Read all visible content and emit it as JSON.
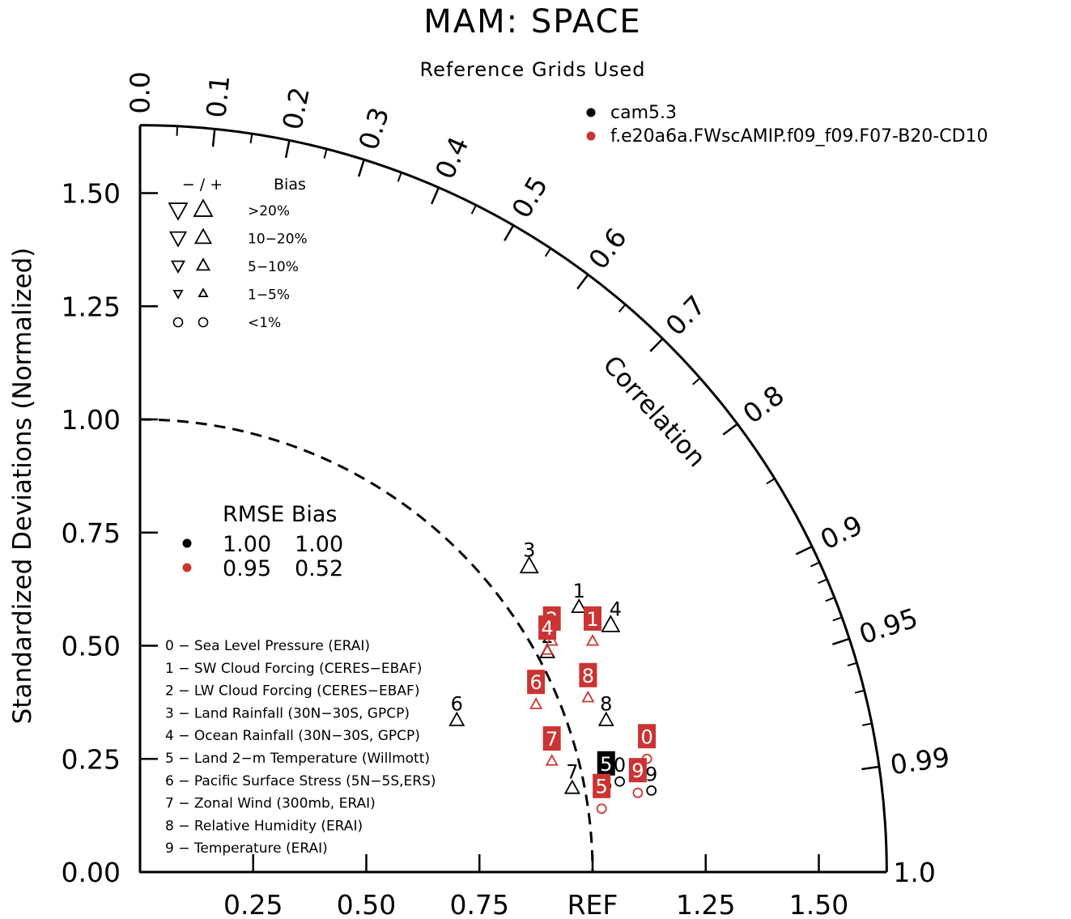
{
  "title": "MAM: SPACE",
  "subtitle": "Reference Grids Used",
  "colors": {
    "black": "#000000",
    "red": "#cc3333"
  },
  "chart_data": {
    "type": "scatter",
    "diagram": "taylor",
    "ylabel": "Standardized Deviations (Normalized)",
    "angular_label": "Correlation",
    "ref_label": "REF",
    "sd_max": 1.65,
    "ref_circle_sd": 1.0,
    "y_ticks": [
      0.0,
      0.25,
      0.5,
      0.75,
      1.0,
      1.25,
      1.5
    ],
    "y_tick_labels": [
      "0.00",
      "0.25",
      "0.50",
      "0.75",
      "1.00",
      "1.25",
      "1.50"
    ],
    "x_ticks": [
      0.25,
      0.5,
      0.75,
      1.0,
      1.25,
      1.5
    ],
    "x_tick_labels": [
      "0.25",
      "0.50",
      "0.75",
      "REF",
      "1.25",
      "1.50"
    ],
    "corr_major": [
      0.0,
      0.1,
      0.2,
      0.3,
      0.4,
      0.5,
      0.6,
      0.7,
      0.8,
      0.9,
      0.95,
      0.99,
      1.0
    ],
    "corr_major_labels": [
      "0.0",
      "0.1",
      "0.2",
      "0.3",
      "0.4",
      "0.5",
      "0.6",
      "0.7",
      "0.8",
      "0.9",
      "0.95",
      "0.99",
      "1.0"
    ],
    "corr_minor": [
      0.05,
      0.15,
      0.25,
      0.35,
      0.45,
      0.55,
      0.65,
      0.75,
      0.85,
      0.91,
      0.92,
      0.93,
      0.94,
      0.96,
      0.97,
      0.98
    ],
    "series": [
      {
        "name": "cam5.3",
        "color": "#000000",
        "rmse": "1.00",
        "bias": "1.00",
        "points": [
          {
            "id": "0",
            "x": 1.06,
            "y": 0.2,
            "marker": "circle",
            "size": "sm",
            "lpos": "above"
          },
          {
            "id": "1",
            "x": 0.97,
            "y": 0.585,
            "marker": "tri-up",
            "size": "md",
            "lpos": "above"
          },
          {
            "id": "2",
            "x": 0.9,
            "y": 0.485,
            "marker": "tri-up",
            "size": "md",
            "lpos": "above"
          },
          {
            "id": "3",
            "x": 0.86,
            "y": 0.675,
            "marker": "tri-up",
            "size": "lg",
            "lpos": "above"
          },
          {
            "id": "4",
            "x": 1.04,
            "y": 0.545,
            "marker": "tri-up",
            "size": "lg",
            "lpos": "aboveright"
          },
          {
            "id": "5",
            "x": 1.03,
            "y": 0.19,
            "marker": "circle",
            "size": "sm",
            "lpos": "box"
          },
          {
            "id": "6",
            "x": 0.7,
            "y": 0.335,
            "marker": "tri-up",
            "size": "md",
            "lpos": "above"
          },
          {
            "id": "7",
            "x": 0.955,
            "y": 0.185,
            "marker": "tri-up",
            "size": "md",
            "lpos": "above"
          },
          {
            "id": "8",
            "x": 1.03,
            "y": 0.335,
            "marker": "tri-up",
            "size": "md",
            "lpos": "above"
          },
          {
            "id": "9",
            "x": 1.13,
            "y": 0.18,
            "marker": "circle",
            "size": "sm",
            "lpos": "above"
          }
        ]
      },
      {
        "name": "f.e20a6a.FWscAMIP.f09_f09.F07-B20-CD10",
        "color": "#cc3333",
        "rmse": "0.95",
        "bias": "0.52",
        "points": [
          {
            "id": "0",
            "x": 1.12,
            "y": 0.25,
            "marker": "circle",
            "size": "sm",
            "lpos": "box"
          },
          {
            "id": "1",
            "x": 1.0,
            "y": 0.51,
            "marker": "tri-up",
            "size": "sm",
            "lpos": "box"
          },
          {
            "id": "2",
            "x": 0.91,
            "y": 0.51,
            "marker": "tri-up",
            "size": "sm",
            "lpos": "box"
          },
          {
            "id": "4",
            "x": 0.9,
            "y": 0.49,
            "marker": "tri-up",
            "size": "sm",
            "lpos": "box"
          },
          {
            "id": "5",
            "x": 1.02,
            "y": 0.14,
            "marker": "circle",
            "size": "sm",
            "lpos": "box"
          },
          {
            "id": "6",
            "x": 0.875,
            "y": 0.37,
            "marker": "tri-up",
            "size": "sm",
            "lpos": "box"
          },
          {
            "id": "7",
            "x": 0.91,
            "y": 0.245,
            "marker": "tri-up",
            "size": "sm",
            "lpos": "box"
          },
          {
            "id": "8",
            "x": 0.99,
            "y": 0.385,
            "marker": "tri-up",
            "size": "sm",
            "lpos": "box"
          },
          {
            "id": "9",
            "x": 1.1,
            "y": 0.175,
            "marker": "circle",
            "size": "sm",
            "lpos": "box"
          }
        ]
      }
    ]
  },
  "bias_legend": {
    "header_sign": "− / +",
    "header_bias": "Bias",
    "rows": [
      ">20%",
      "10−20%",
      "5−10%",
      "1−5%",
      "<1%"
    ]
  },
  "rmse_legend": {
    "header": "RMSE Bias"
  },
  "variables": [
    "0 − Sea Level Pressure (ERAI)",
    "1 − SW Cloud Forcing (CERES−EBAF)",
    "2 − LW Cloud Forcing (CERES−EBAF)",
    "3 − Land Rainfall (30N−30S, GPCP)",
    "4 − Ocean Rainfall (30N−30S, GPCP)",
    "5 − Land 2−m Temperature (Willmott)",
    "6 − Pacific Surface Stress (5N−5S,ERS)",
    "7 − Zonal Wind (300mb, ERAI)",
    "8 − Relative Humidity (ERAI)",
    "9 − Temperature (ERAI)"
  ]
}
